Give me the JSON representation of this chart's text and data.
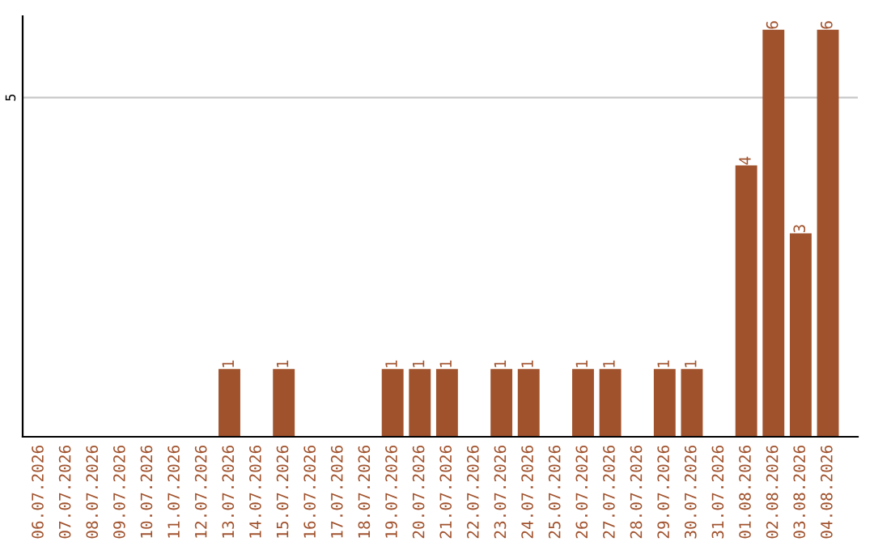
{
  "chart_data": {
    "type": "bar",
    "categories": [
      "06.07.2026",
      "07.07.2026",
      "08.07.2026",
      "09.07.2026",
      "10.07.2026",
      "11.07.2026",
      "12.07.2026",
      "13.07.2026",
      "14.07.2026",
      "15.07.2026",
      "16.07.2026",
      "17.07.2026",
      "18.07.2026",
      "19.07.2026",
      "20.07.2026",
      "21.07.2026",
      "22.07.2026",
      "23.07.2026",
      "24.07.2026",
      "25.07.2026",
      "26.07.2026",
      "27.07.2026",
      "28.07.2026",
      "29.07.2026",
      "30.07.2026",
      "31.07.2026",
      "01.08.2026",
      "02.08.2026",
      "03.08.2026",
      "04.08.2026"
    ],
    "values": [
      0,
      0,
      0,
      0,
      0,
      0,
      0,
      1,
      0,
      1,
      0,
      0,
      0,
      1,
      1,
      1,
      0,
      1,
      1,
      0,
      1,
      1,
      0,
      1,
      1,
      0,
      4,
      6,
      3,
      6
    ],
    "value_labels": [
      null,
      null,
      null,
      null,
      null,
      null,
      null,
      "1",
      null,
      "1",
      null,
      null,
      null,
      "1",
      "1",
      "1",
      null,
      "1",
      "1",
      null,
      "1",
      "1",
      null,
      "1",
      "1",
      null,
      "4",
      "6",
      "3",
      "6"
    ],
    "color": "#a0522d",
    "ylim": [
      0,
      6.2
    ],
    "yticks": [
      5
    ],
    "grid": "y",
    "legend": false
  }
}
